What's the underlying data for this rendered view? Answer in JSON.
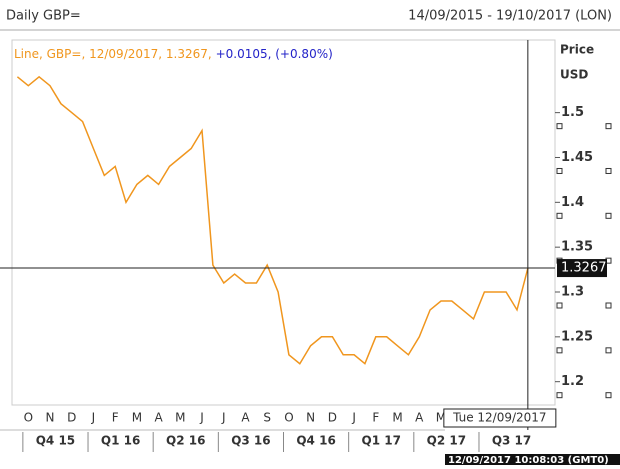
{
  "chart_data": {
    "type": "line",
    "title": "Daily GBP=",
    "range": "14/09/2015 - 19/10/2017 (LON)",
    "legend": {
      "name": "Line, GBP=",
      "date": "12/09/2017",
      "value": 1.3267,
      "change": "+0.0105",
      "change_pct": "(+0.80%)"
    },
    "y_axis_label": [
      "Price",
      "USD"
    ],
    "cursor_label": "Tue 12/09/2017",
    "timestamp": "12/09/2017 10:08:03 (GMT0)",
    "categories": [
      null,
      "O",
      null,
      "N",
      null,
      "D",
      null,
      "J",
      null,
      "F",
      null,
      "M",
      null,
      "A",
      null,
      "M",
      null,
      "J",
      null,
      "J",
      null,
      "A",
      null,
      "S",
      null,
      "O",
      null,
      "N",
      null,
      "D",
      null,
      "J",
      null,
      "F",
      null,
      "M",
      null,
      "A",
      null,
      "M",
      null,
      null,
      null,
      null,
      null,
      null,
      null,
      null,
      null,
      null
    ],
    "quarters": [
      "Q4 15",
      "Q1 16",
      "Q2 16",
      "Q3 16",
      "Q4 16",
      "Q1 17",
      "Q2 17",
      "Q3 17"
    ],
    "series": [
      {
        "name": "GBP=",
        "color": "#f0961e",
        "values": [
          1.54,
          1.53,
          1.54,
          1.53,
          1.51,
          1.5,
          1.49,
          1.46,
          1.43,
          1.44,
          1.4,
          1.42,
          1.43,
          1.42,
          1.44,
          1.45,
          1.46,
          1.48,
          1.33,
          1.31,
          1.32,
          1.31,
          1.31,
          1.33,
          1.3,
          1.23,
          1.22,
          1.24,
          1.25,
          1.25,
          1.23,
          1.23,
          1.22,
          1.25,
          1.25,
          1.24,
          1.23,
          1.25,
          1.28,
          1.29,
          1.29,
          1.28,
          1.27,
          1.3,
          1.3,
          1.3,
          1.28,
          1.3267,
          null,
          null
        ]
      }
    ],
    "ylim": [
      1.174,
      1.581
    ],
    "yticks": [
      1.2,
      1.25,
      1.3,
      1.35,
      1.4,
      1.45,
      1.5
    ]
  }
}
